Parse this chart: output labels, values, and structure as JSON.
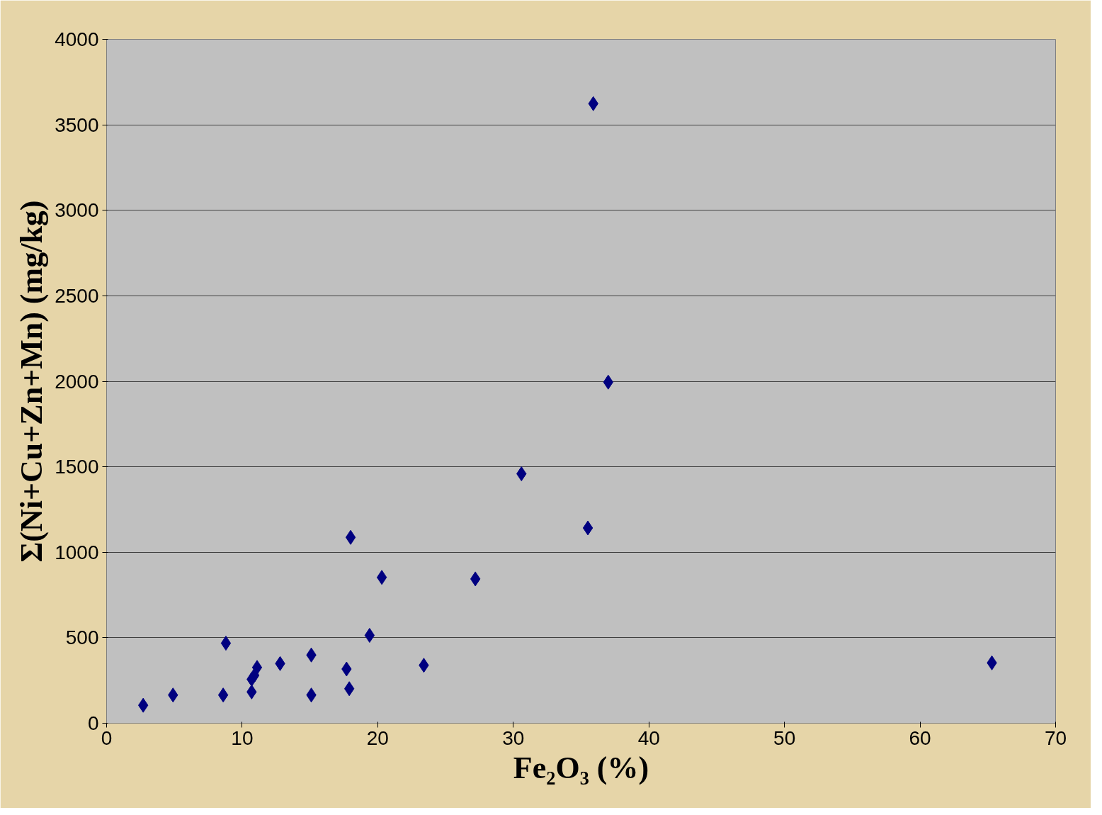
{
  "chart_data": {
    "type": "scatter",
    "xlabel": "Fe₂O₃ (%)",
    "ylabel": "Σ(Ni+Cu+Zn+Mn) (mg/kg)",
    "x": [
      2.7,
      4.9,
      8.6,
      8.8,
      10.7,
      10.7,
      10.9,
      11.1,
      12.8,
      15.1,
      15.1,
      17.7,
      17.9,
      18.0,
      19.4,
      20.3,
      23.4,
      27.2,
      30.6,
      35.5,
      35.9,
      37.0,
      65.3
    ],
    "values": [
      105,
      165,
      165,
      468,
      183,
      257,
      280,
      326,
      349,
      399,
      165,
      317,
      202,
      1087,
      514,
      853,
      339,
      844,
      1459,
      1142,
      3624,
      1995,
      353
    ],
    "color": "#000080",
    "marker": "diamond",
    "grid": "y",
    "xlim": [
      0,
      70
    ],
    "xticks": [
      0,
      10,
      20,
      30,
      40,
      50,
      60,
      70
    ],
    "ylim": [
      0,
      4000
    ],
    "yticks": [
      0,
      500,
      1000,
      1500,
      2000,
      2500,
      3000,
      3500,
      4000
    ]
  }
}
